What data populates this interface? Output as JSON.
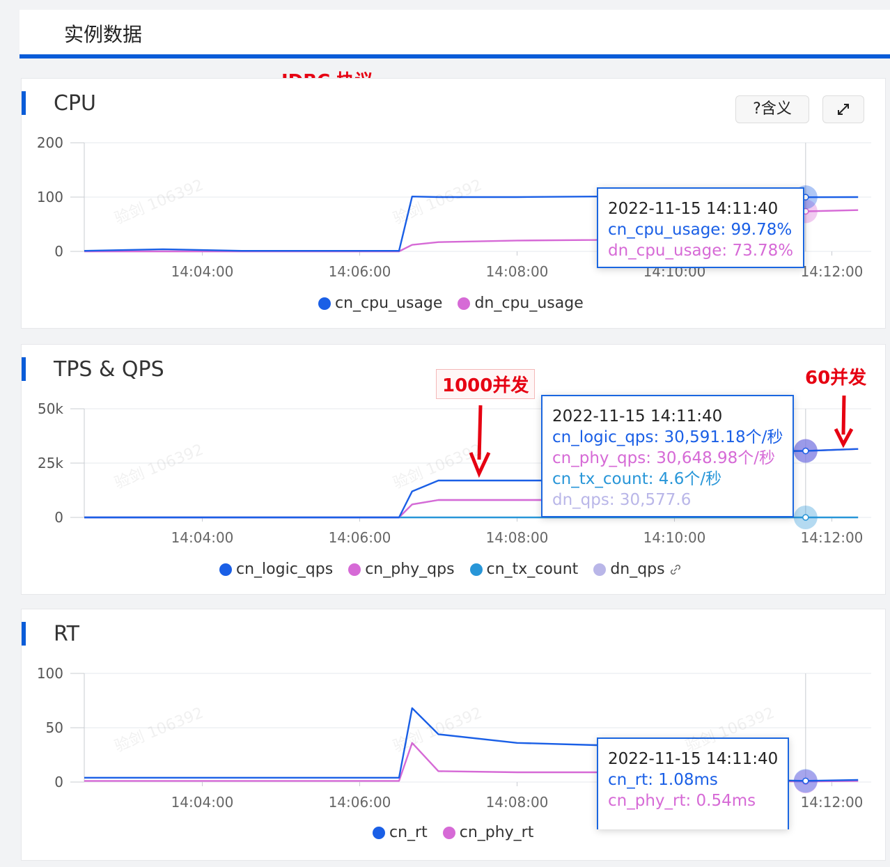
{
  "page_title": "实例数据",
  "annotations": {
    "jdbc": "JDBC 协议",
    "c1000": "1000并发",
    "c60": "60并发"
  },
  "watermark": "验剑 106392",
  "colors": {
    "accent": "#0a5cd8",
    "blue": "#1a5fe6",
    "pink": "#d66ad6",
    "cyan": "#2896d8",
    "lavender": "#b9b6e8",
    "annot_red": "#e60012"
  },
  "buttons": {
    "meaning": "?含义",
    "expand_icon": "expand-icon"
  },
  "x_ticks": [
    "14:04:00",
    "14:06:00",
    "14:08:00",
    "14:10:00",
    "14:12:00"
  ],
  "cpu": {
    "title": "CPU",
    "y_ticks": [
      "200",
      "100",
      "0"
    ],
    "legend": [
      "cn_cpu_usage",
      "dn_cpu_usage"
    ],
    "tooltip": {
      "time": "2022-11-15 14:11:40",
      "lines": [
        "cn_cpu_usage: 99.78%",
        "dn_cpu_usage: 73.78%"
      ]
    }
  },
  "tps": {
    "title": "TPS & QPS",
    "y_ticks": [
      "50k",
      "25k",
      "0"
    ],
    "legend": [
      "cn_logic_qps",
      "cn_phy_qps",
      "cn_tx_count",
      "dn_qps"
    ],
    "tooltip": {
      "time": "2022-11-15 14:11:40",
      "lines": [
        "cn_logic_qps: 30,591.18个/秒",
        "cn_phy_qps: 30,648.98个/秒",
        "cn_tx_count: 4.6个/秒",
        "dn_qps: 30,577.6"
      ]
    }
  },
  "rt": {
    "title": "RT",
    "y_ticks": [
      "100",
      "50",
      "0"
    ],
    "legend": [
      "cn_rt",
      "cn_phy_rt"
    ],
    "tooltip": {
      "time": "2022-11-15 14:11:40",
      "lines": [
        "cn_rt: 1.08ms",
        "cn_phy_rt: 0.54ms"
      ]
    }
  },
  "chart_data": [
    {
      "type": "line",
      "title": "CPU",
      "x": [
        "14:02:30",
        "14:03:30",
        "14:04:30",
        "14:05:30",
        "14:06:30",
        "14:06:40",
        "14:07:00",
        "14:08:00",
        "14:09:00",
        "14:10:00",
        "14:11:00",
        "14:11:40",
        "14:12:20"
      ],
      "ylim": [
        0,
        200
      ],
      "series": [
        {
          "name": "cn_cpu_usage",
          "values": [
            1,
            4,
            1,
            1,
            1,
            101,
            100,
            100,
            101,
            100,
            100,
            99.78,
            100
          ]
        },
        {
          "name": "dn_cpu_usage",
          "values": [
            0,
            0,
            0,
            0,
            0,
            12,
            17,
            20,
            21,
            27,
            72,
            73.78,
            76
          ]
        }
      ]
    },
    {
      "type": "line",
      "title": "TPS & QPS",
      "x": [
        "14:02:30",
        "14:03:30",
        "14:04:30",
        "14:05:30",
        "14:06:30",
        "14:06:40",
        "14:07:00",
        "14:08:00",
        "14:09:00",
        "14:10:00",
        "14:11:00",
        "14:11:40",
        "14:12:20"
      ],
      "ylim": [
        0,
        50000
      ],
      "series": [
        {
          "name": "cn_logic_qps",
          "values": [
            0,
            0,
            0,
            0,
            0,
            12000,
            17000,
            17000,
            17000,
            17000,
            30500,
            30591.18,
            31500
          ]
        },
        {
          "name": "cn_phy_qps",
          "values": [
            0,
            0,
            0,
            0,
            0,
            6000,
            8000,
            8000,
            8000,
            8000,
            30500,
            30648.98,
            31500
          ]
        },
        {
          "name": "cn_tx_count",
          "values": [
            0,
            0,
            0,
            0,
            0,
            0,
            0,
            0,
            0,
            0,
            0,
            4.6,
            0
          ]
        },
        {
          "name": "dn_qps",
          "values": [
            0,
            0,
            0,
            0,
            0,
            6000,
            8000,
            8000,
            8000,
            8000,
            30500,
            30577.6,
            31500
          ]
        }
      ]
    },
    {
      "type": "line",
      "title": "RT",
      "x": [
        "14:02:30",
        "14:03:30",
        "14:04:30",
        "14:05:30",
        "14:06:30",
        "14:06:40",
        "14:07:00",
        "14:08:00",
        "14:09:00",
        "14:10:00",
        "14:11:00",
        "14:11:40",
        "14:12:20"
      ],
      "ylim": [
        0,
        100
      ],
      "series": [
        {
          "name": "cn_rt",
          "values": [
            4,
            4,
            4,
            4,
            4,
            68,
            44,
            36,
            34,
            34,
            2,
            1.08,
            2
          ]
        },
        {
          "name": "cn_phy_rt",
          "values": [
            1,
            1,
            1,
            1,
            1,
            36,
            10,
            9,
            9,
            9,
            1,
            0.54,
            1
          ]
        }
      ]
    }
  ]
}
